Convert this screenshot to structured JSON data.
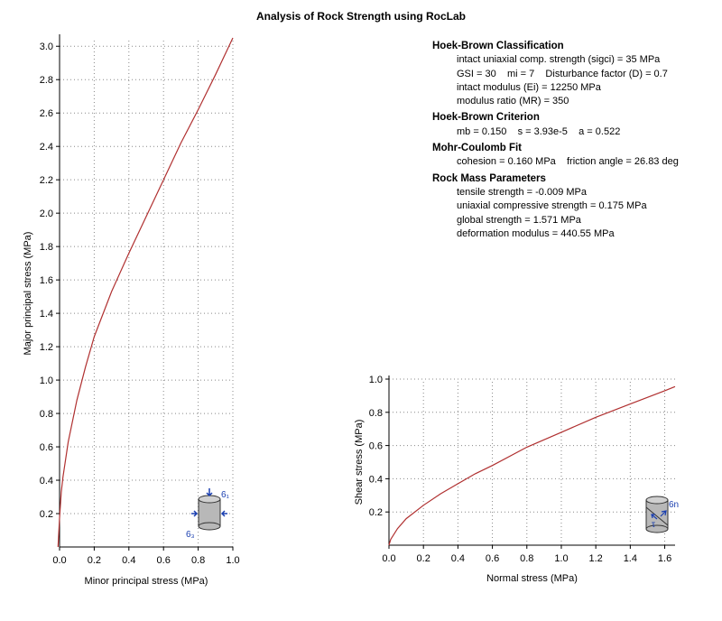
{
  "title": "Analysis of Rock Strength using RocLab",
  "info": {
    "hb_class_title": "Hoek-Brown Classification",
    "hb_class_lines": [
      "intact uniaxial comp. strength (sigci) = 35 MPa",
      "GSI = 30    mi = 7    Disturbance factor (D) = 0.7",
      "intact modulus (Ei) = 12250 MPa",
      "modulus ratio (MR) = 350"
    ],
    "hb_crit_title": "Hoek-Brown Criterion",
    "hb_crit_lines": [
      "mb = 0.150    s = 3.93e-5    a = 0.522"
    ],
    "mc_title": "Mohr-Coulomb Fit",
    "mc_lines": [
      "cohesion = 0.160 MPa    friction angle = 26.83 deg"
    ],
    "rm_title": "Rock Mass Parameters",
    "rm_lines": [
      "tensile strength = -0.009 MPa",
      "uniaxial compressive strength = 0.175 MPa",
      "global strength = 1.571 MPa",
      "deformation modulus = 440.55 MPa"
    ]
  },
  "colors": {
    "curve": "#b03030",
    "icon": "#1a3fb0",
    "grid": "#888888"
  },
  "icon_labels": {
    "principal_top": "6₁",
    "principal_side": "6₃",
    "shear_normal": "6n",
    "shear_tau": "τ"
  },
  "chart_data": [
    {
      "type": "line",
      "xlabel": "Minor principal stress (MPa)",
      "ylabel": "Major principal stress (MPa)",
      "xlim": [
        0,
        1.0
      ],
      "ylim": [
        0,
        3.05
      ],
      "xticks": [
        0.0,
        0.2,
        0.4,
        0.6,
        0.8,
        1.0
      ],
      "xtick_labels": [
        "0.0",
        "0.2",
        "0.4",
        "0.6",
        "0.8",
        "1.0"
      ],
      "yticks": [
        0.2,
        0.4,
        0.6,
        0.8,
        1.0,
        1.2,
        1.4,
        1.6,
        1.8,
        2.0,
        2.2,
        2.4,
        2.6,
        2.8,
        3.0
      ],
      "ytick_labels": [
        "0.2",
        "0.4",
        "0.6",
        "0.8",
        "1.0",
        "1.2",
        "1.4",
        "1.6",
        "1.8",
        "2.0",
        "2.2",
        "2.4",
        "2.6",
        "2.8",
        "3.0"
      ],
      "grid": true,
      "series": [
        {
          "x": [
            -0.009,
            0.0,
            0.01,
            0.02,
            0.05,
            0.1,
            0.15,
            0.2,
            0.3,
            0.4,
            0.5,
            0.6,
            0.7,
            0.8,
            0.9,
            1.0
          ],
          "y": [
            0.0,
            0.175,
            0.33,
            0.42,
            0.63,
            0.88,
            1.08,
            1.26,
            1.53,
            1.76,
            1.98,
            2.2,
            2.42,
            2.62,
            2.83,
            3.05
          ]
        }
      ]
    },
    {
      "type": "line",
      "xlabel": "Normal stress (MPa)",
      "ylabel": "Shear stress (MPa)",
      "xlim": [
        0,
        1.66
      ],
      "ylim": [
        0,
        1.0
      ],
      "xticks": [
        0.0,
        0.2,
        0.4,
        0.6,
        0.8,
        1.0,
        1.2,
        1.4,
        1.6
      ],
      "xtick_labels": [
        "0.0",
        "0.2",
        "0.4",
        "0.6",
        "0.8",
        "1.0",
        "1.2",
        "1.4",
        "1.6"
      ],
      "yticks": [
        0.2,
        0.4,
        0.6,
        0.8,
        1.0
      ],
      "ytick_labels": [
        "0.2",
        "0.4",
        "0.6",
        "0.8",
        "1.0"
      ],
      "grid": true,
      "series": [
        {
          "x": [
            0.0,
            0.01,
            0.05,
            0.1,
            0.2,
            0.3,
            0.4,
            0.5,
            0.6,
            0.8,
            1.0,
            1.2,
            1.4,
            1.6,
            1.66
          ],
          "y": [
            0.0,
            0.035,
            0.1,
            0.16,
            0.24,
            0.31,
            0.37,
            0.43,
            0.48,
            0.59,
            0.68,
            0.77,
            0.85,
            0.93,
            0.955
          ]
        }
      ]
    }
  ]
}
